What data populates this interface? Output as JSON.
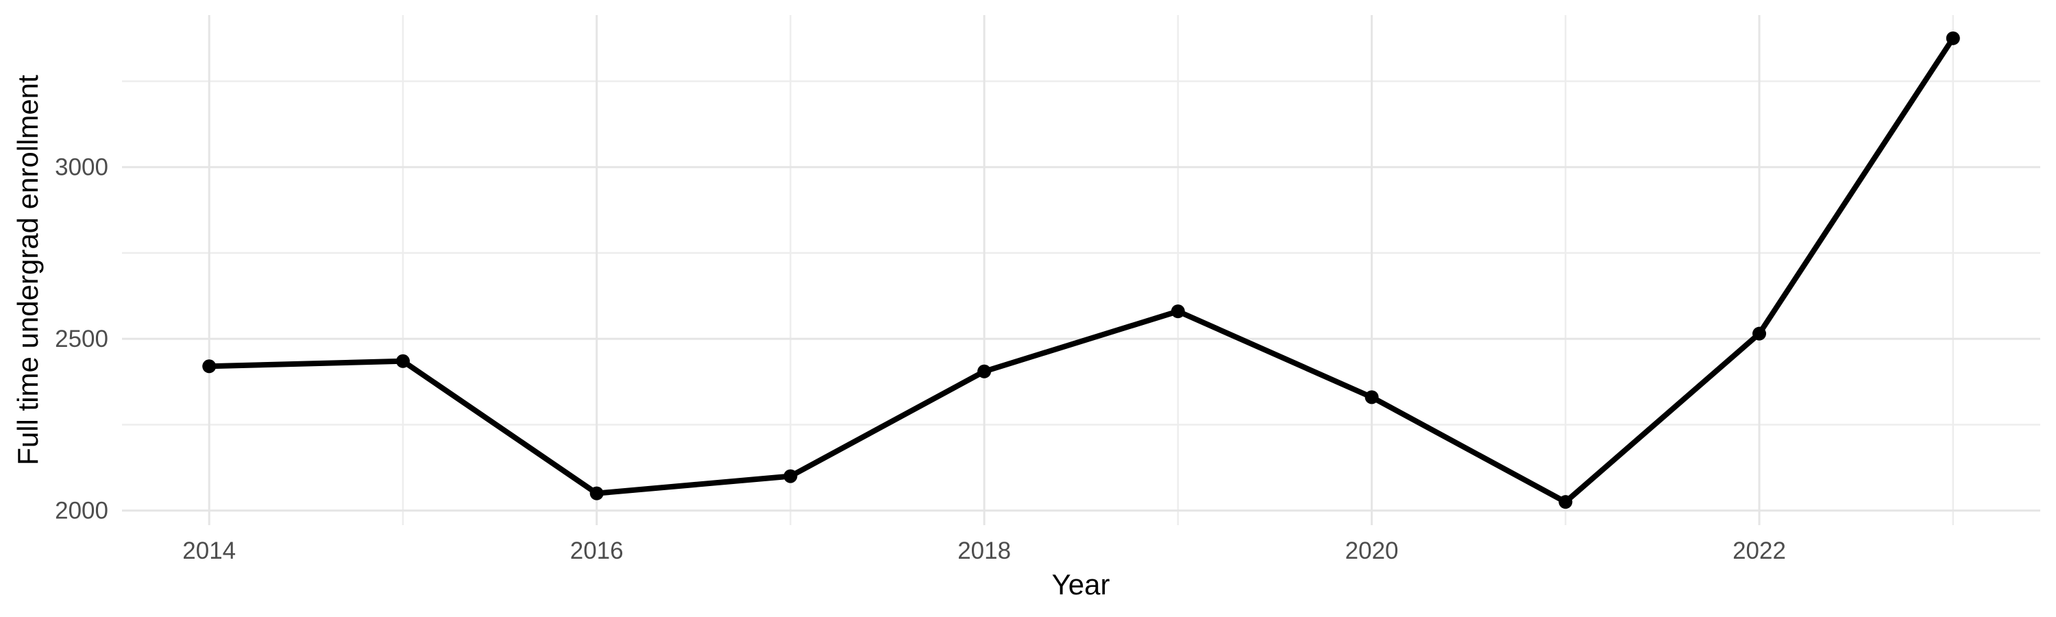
{
  "chart_data": {
    "type": "line",
    "title": "",
    "xlabel": "Year",
    "ylabel": "Full time undergrad enrollment",
    "x": [
      2014,
      2015,
      2016,
      2017,
      2018,
      2019,
      2020,
      2021,
      2022,
      2023
    ],
    "values": [
      2420,
      2435,
      2050,
      2100,
      2405,
      2580,
      2330,
      2025,
      2515,
      3375
    ],
    "series_name": "Full time undergrad enrollment by year",
    "x_major_ticks": [
      2014,
      2016,
      2018,
      2020,
      2022
    ],
    "x_minor_ticks": [
      2015,
      2017,
      2019,
      2021,
      2023
    ],
    "y_major_ticks": [
      2000,
      2500,
      3000
    ],
    "y_minor_ticks": [
      2250,
      2750,
      3250
    ],
    "x_range": [
      2013.55,
      2023.45
    ],
    "y_range": [
      1957.5,
      3442.5
    ],
    "grid": true,
    "legend": false,
    "marker": "point",
    "colors": {
      "line": "#000000",
      "point": "#000000",
      "grid_major": "#e5e5e5",
      "grid_minor": "#ededed",
      "tick_label": "#4d4d4d",
      "axis_title": "#000000",
      "background": "#ffffff"
    }
  }
}
